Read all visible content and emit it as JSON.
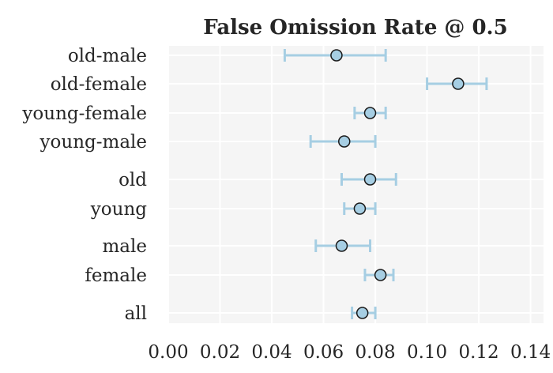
{
  "chart_data": {
    "type": "scatter",
    "title": "False Omission Rate @ 0.5",
    "xlabel": "",
    "ylabel": "",
    "xlim": [
      0.0,
      0.145
    ],
    "x_ticks": [
      "0.00",
      "0.02",
      "0.04",
      "0.06",
      "0.08",
      "0.10",
      "0.12",
      "0.14"
    ],
    "x_tick_values": [
      0.0,
      0.02,
      0.04,
      0.06,
      0.08,
      0.1,
      0.12,
      0.14
    ],
    "grid": true,
    "series": [
      {
        "categories": [
          "old-male",
          "old-female",
          "young-female",
          "young-male",
          "old",
          "young",
          "male",
          "female",
          "all"
        ],
        "values": [
          0.065,
          0.112,
          0.078,
          0.068,
          0.078,
          0.074,
          0.067,
          0.082,
          0.075
        ],
        "ci_low": [
          0.045,
          0.1,
          0.072,
          0.055,
          0.067,
          0.068,
          0.057,
          0.076,
          0.071
        ],
        "ci_high": [
          0.084,
          0.123,
          0.084,
          0.08,
          0.088,
          0.08,
          0.078,
          0.087,
          0.08
        ]
      }
    ],
    "colors": {
      "marker_fill": "#a6cee3",
      "marker_edge": "#1a1a1a",
      "errorbar": "#a6cee3",
      "plot_bg": "#f5f5f5",
      "grid": "#ffffff",
      "text": "#262626"
    }
  }
}
